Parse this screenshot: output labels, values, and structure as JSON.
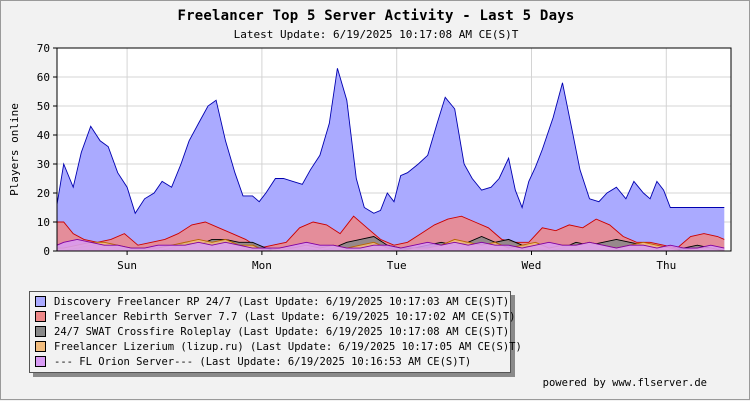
{
  "title": "Freelancer Top 5 Server Activity - Last 5 Days",
  "subtitle": "Latest Update: 6/19/2025 10:17:08 AM CE(S)T",
  "footer": "powered by www.flserver.de",
  "colors": {
    "background": "#f2f2f2",
    "plot_background": "#ffffff",
    "grid": "#d4d4d4"
  },
  "chart_data": {
    "type": "area",
    "title": "Freelancer Top 5 Server Activity - Last 5 Days",
    "subtitle": "Latest Update: 6/19/2025 10:17:08 AM CE(S)T",
    "ylabel": "Players online",
    "xlabel": "",
    "ylim": [
      0,
      70
    ],
    "yticks": [
      0,
      10,
      20,
      30,
      40,
      50,
      60,
      70
    ],
    "xlim": [
      0,
      5
    ],
    "xticks": [
      {
        "x": 0.52,
        "label": "Sun"
      },
      {
        "x": 1.52,
        "label": "Mon"
      },
      {
        "x": 2.52,
        "label": "Tue"
      },
      {
        "x": 3.52,
        "label": "Wed"
      },
      {
        "x": 4.52,
        "label": "Thu"
      }
    ],
    "grid": true,
    "legend_position": "bottom-left",
    "series": [
      {
        "name": "Discovery Freelancer RP 24/7 (Last Update: 6/19/2025 10:17:03 AM CE(S)T)",
        "fill": "#aaaaff",
        "line": "#0000b0",
        "x": [
          0.0,
          0.05,
          0.12,
          0.18,
          0.25,
          0.32,
          0.38,
          0.45,
          0.52,
          0.58,
          0.65,
          0.72,
          0.78,
          0.85,
          0.92,
          0.98,
          1.05,
          1.12,
          1.18,
          1.25,
          1.32,
          1.38,
          1.45,
          1.5,
          1.55,
          1.62,
          1.68,
          1.75,
          1.82,
          1.88,
          1.95,
          2.02,
          2.08,
          2.15,
          2.22,
          2.28,
          2.35,
          2.4,
          2.45,
          2.5,
          2.55,
          2.6,
          2.68,
          2.75,
          2.82,
          2.88,
          2.95,
          3.02,
          3.08,
          3.15,
          3.22,
          3.28,
          3.35,
          3.4,
          3.45,
          3.5,
          3.55,
          3.6,
          3.68,
          3.75,
          3.82,
          3.88,
          3.95,
          4.02,
          4.08,
          4.15,
          4.22,
          4.28,
          4.35,
          4.4,
          4.45,
          4.5,
          4.55,
          4.6,
          4.68,
          4.75,
          4.82,
          4.88,
          4.95
        ],
        "y": [
          16,
          30,
          22,
          34,
          43,
          38,
          36,
          27,
          22,
          13,
          18,
          20,
          24,
          22,
          30,
          38,
          44,
          50,
          52,
          38,
          27,
          19,
          19,
          17,
          20,
          25,
          25,
          24,
          23,
          28,
          33,
          44,
          63,
          52,
          25,
          15,
          13,
          14,
          20,
          17,
          26,
          27,
          30,
          33,
          44,
          53,
          49,
          30,
          25,
          21,
          22,
          25,
          32,
          21,
          15,
          24,
          29,
          35,
          46,
          58,
          42,
          28,
          18,
          17,
          20,
          22,
          18,
          24,
          20,
          18,
          24,
          21,
          15,
          15,
          15,
          15,
          15,
          15,
          15
        ]
      },
      {
        "name": "Freelancer Rebirth Server 7.7 (Last Update: 6/19/2025 10:17:02 AM CE(S)T)",
        "fill": "#ee8888",
        "line": "#cc0000",
        "x": [
          0.0,
          0.05,
          0.12,
          0.2,
          0.3,
          0.4,
          0.5,
          0.6,
          0.7,
          0.8,
          0.9,
          1.0,
          1.1,
          1.2,
          1.3,
          1.4,
          1.5,
          1.6,
          1.7,
          1.8,
          1.9,
          2.0,
          2.1,
          2.2,
          2.3,
          2.4,
          2.5,
          2.6,
          2.7,
          2.8,
          2.9,
          3.0,
          3.1,
          3.2,
          3.3,
          3.4,
          3.5,
          3.6,
          3.7,
          3.8,
          3.9,
          4.0,
          4.1,
          4.2,
          4.3,
          4.4,
          4.5,
          4.6,
          4.7,
          4.8,
          4.9,
          4.95
        ],
        "y": [
          10,
          10,
          6,
          4,
          3,
          4,
          6,
          2,
          3,
          4,
          6,
          9,
          10,
          8,
          6,
          4,
          1,
          2,
          3,
          8,
          10,
          9,
          6,
          12,
          8,
          4,
          2,
          3,
          6,
          9,
          11,
          12,
          10,
          8,
          4,
          3,
          3,
          8,
          7,
          9,
          8,
          11,
          9,
          5,
          3,
          3,
          2,
          1,
          5,
          6,
          5,
          4
        ]
      },
      {
        "name": "24/7 SWAT Crossfire Roleplay (Last Update: 6/19/2025 10:17:08 AM CE(S)T)",
        "fill": "#888888",
        "line": "#000000",
        "x": [
          0.0,
          0.05,
          0.15,
          0.25,
          0.35,
          0.45,
          0.55,
          0.65,
          0.75,
          0.85,
          0.95,
          1.05,
          1.15,
          1.25,
          1.35,
          1.45,
          1.55,
          1.65,
          1.75,
          1.85,
          1.95,
          2.05,
          2.15,
          2.25,
          2.35,
          2.45,
          2.55,
          2.65,
          2.75,
          2.85,
          2.95,
          3.05,
          3.15,
          3.25,
          3.35,
          3.45,
          3.55,
          3.65,
          3.75,
          3.85,
          3.95,
          4.05,
          4.15,
          4.25,
          4.35,
          4.45,
          4.55,
          4.65,
          4.75,
          4.85,
          4.95
        ],
        "y": [
          0,
          0,
          1,
          2,
          2,
          1,
          1,
          0,
          0,
          1,
          3,
          2,
          4,
          4,
          3,
          3,
          1,
          0,
          1,
          1,
          0,
          1,
          3,
          4,
          5,
          2,
          1,
          1,
          2,
          3,
          2,
          3,
          5,
          3,
          4,
          2,
          1,
          0,
          1,
          3,
          2,
          3,
          4,
          3,
          2,
          1,
          0,
          1,
          2,
          1,
          0
        ]
      },
      {
        "name": "Freelancer Lizerium (lizup.ru) (Last Update: 6/19/2025 10:17:05 AM CE(S)T)",
        "fill": "#f2bd7e",
        "line": "#b86400",
        "x": [
          0.0,
          0.05,
          0.15,
          0.25,
          0.35,
          0.45,
          0.55,
          0.65,
          0.75,
          0.85,
          0.95,
          1.05,
          1.15,
          1.25,
          1.35,
          1.45,
          1.55,
          1.65,
          1.75,
          1.85,
          1.95,
          2.05,
          2.15,
          2.25,
          2.35,
          2.45,
          2.55,
          2.65,
          2.75,
          2.85,
          2.95,
          3.05,
          3.15,
          3.25,
          3.35,
          3.45,
          3.55,
          3.65,
          3.75,
          3.85,
          3.95,
          4.05,
          4.15,
          4.25,
          4.35,
          4.45,
          4.55,
          4.65,
          4.75,
          4.85,
          4.95
        ],
        "y": [
          1,
          1,
          2,
          3,
          3,
          2,
          1,
          1,
          1,
          2,
          3,
          4,
          3,
          4,
          2,
          2,
          0,
          1,
          1,
          2,
          1,
          2,
          1,
          2,
          3,
          1,
          0,
          1,
          1,
          2,
          4,
          3,
          2,
          3,
          1,
          2,
          3,
          1,
          2,
          2,
          3,
          2,
          1,
          2,
          3,
          2,
          1,
          0,
          1,
          1,
          0
        ]
      },
      {
        "name": "--- FL Orion Server--- (Last Update: 6/19/2025 10:16:53 AM CE(S)T)",
        "fill": "#d99cf5",
        "line": "#8000a0",
        "x": [
          0.0,
          0.05,
          0.15,
          0.25,
          0.35,
          0.45,
          0.55,
          0.65,
          0.75,
          0.85,
          0.95,
          1.05,
          1.15,
          1.25,
          1.35,
          1.45,
          1.55,
          1.65,
          1.75,
          1.85,
          1.95,
          2.05,
          2.15,
          2.25,
          2.35,
          2.45,
          2.55,
          2.65,
          2.75,
          2.85,
          2.95,
          3.05,
          3.15,
          3.25,
          3.35,
          3.45,
          3.55,
          3.65,
          3.75,
          3.85,
          3.95,
          4.05,
          4.15,
          4.25,
          4.35,
          4.45,
          4.55,
          4.65,
          4.75,
          4.85,
          4.95
        ],
        "y": [
          2,
          3,
          4,
          3,
          2,
          2,
          1,
          1,
          2,
          2,
          2,
          3,
          2,
          3,
          2,
          1,
          1,
          1,
          2,
          3,
          2,
          2,
          1,
          1,
          2,
          2,
          1,
          2,
          3,
          2,
          3,
          2,
          3,
          2,
          2,
          1,
          2,
          3,
          2,
          2,
          3,
          2,
          1,
          2,
          2,
          1,
          2,
          1,
          1,
          2,
          1
        ]
      }
    ]
  }
}
